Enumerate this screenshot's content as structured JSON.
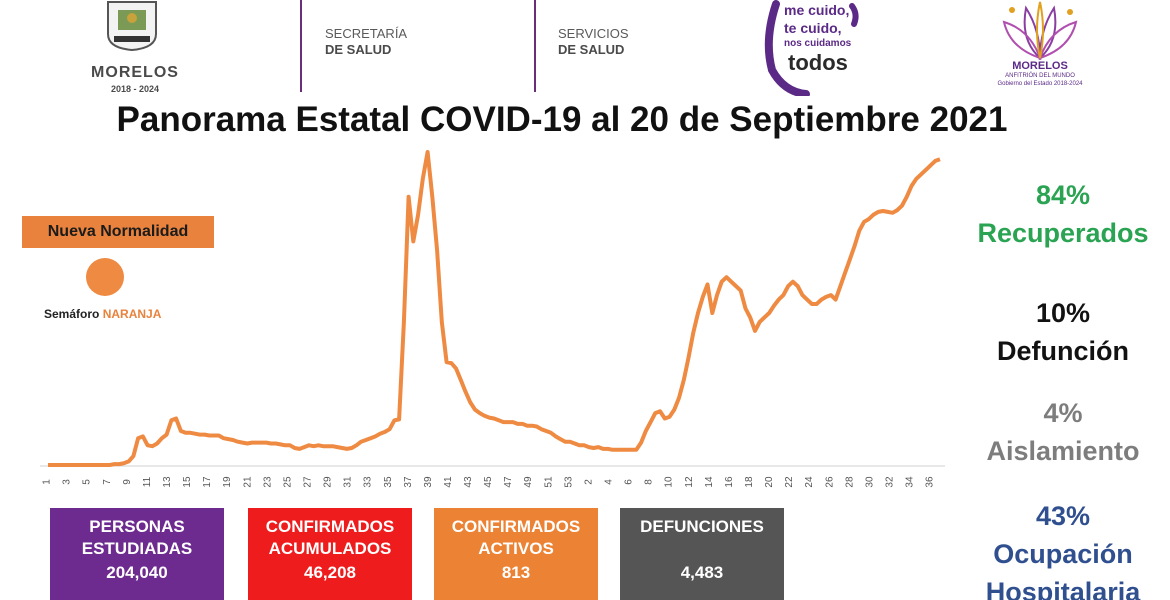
{
  "header": {
    "state_logo": {
      "name": "MORELOS",
      "years": "2018 - 2024"
    },
    "secretaria": {
      "line1": "SECRETARÍA",
      "line2": "DE SALUD"
    },
    "servicios": {
      "line1": "SERVICIOS",
      "line2": "DE SALUD"
    },
    "campaign": {
      "line1": "me cuido,",
      "line2": "te cuido,",
      "line3": "nos cuidamos",
      "line4": "todos"
    },
    "gov_logo": {
      "name": "MORELOS",
      "tagline": "ANFITRIÓN DEL MUNDO",
      "subline": "Gobierno del Estado 2018-2024"
    }
  },
  "title": "Panorama Estatal COVID-19 al 20 de Septiembre 2021",
  "legend": {
    "badge": "Nueva Normalidad",
    "semaforo_label": "Semáforo",
    "semaforo_level": "NARANJA",
    "semaforo_color": "#ee8a42"
  },
  "stats": {
    "recuperados": {
      "pct": "84%",
      "label": "Recuperados",
      "color": "#2aa352"
    },
    "defuncion": {
      "pct": "10%",
      "label": "Defunción",
      "color": "#121212"
    },
    "aislamiento": {
      "pct": "4%",
      "label": "Aislamiento",
      "color": "#7d7d7d"
    },
    "hospitalaria": {
      "pct": "43%",
      "label": "Ocupación Hospitalaria",
      "color": "#2f4f8f"
    }
  },
  "boxes": [
    {
      "label1": "PERSONAS",
      "label2": "ESTUDIADAS",
      "value": "204,040",
      "color": "#6e2b8f"
    },
    {
      "label1": "CONFIRMADOS",
      "label2": "ACUMULADOS",
      "value": "46,208",
      "color": "#ee1c1c"
    },
    {
      "label1": "CONFIRMADOS",
      "label2": "ACTIVOS",
      "value": "813",
      "color": "#ec8233"
    },
    {
      "label1": "DEFUNCIONES",
      "label2": "",
      "value": "4,483",
      "color": "#555555"
    }
  ],
  "chart_data": {
    "type": "line",
    "line_color": "#ee8a42",
    "x_labels": [
      "1",
      "3",
      "5",
      "7",
      "9",
      "11",
      "13",
      "15",
      "17",
      "19",
      "21",
      "23",
      "25",
      "27",
      "29",
      "31",
      "33",
      "35",
      "37",
      "39",
      "41",
      "43",
      "45",
      "47",
      "49",
      "51",
      "53",
      "2",
      "4",
      "6",
      "8",
      "10",
      "12",
      "14",
      "16",
      "18",
      "20",
      "22",
      "24",
      "26",
      "28",
      "30",
      "32",
      "34",
      "36"
    ],
    "values": [
      0,
      0,
      0,
      0,
      0,
      0,
      0,
      0,
      0,
      0,
      0,
      0,
      0,
      0,
      1,
      1,
      2,
      4,
      10,
      30,
      32,
      22,
      21,
      24,
      30,
      34,
      50,
      52,
      38,
      36,
      36,
      35,
      34,
      34,
      33,
      33,
      33,
      30,
      29,
      28,
      26,
      25,
      24,
      25,
      25,
      25,
      25,
      24,
      24,
      23,
      22,
      22,
      19,
      18,
      20,
      22,
      21,
      22,
      21,
      21,
      21,
      20,
      19,
      18,
      19,
      22,
      26,
      28,
      30,
      32,
      35,
      37,
      40,
      50,
      51,
      160,
      300,
      250,
      280,
      320,
      350,
      300,
      240,
      160,
      115,
      114,
      108,
      95,
      82,
      70,
      62,
      58,
      55,
      53,
      52,
      50,
      48,
      48,
      48,
      46,
      46,
      44,
      44,
      43,
      40,
      38,
      36,
      32,
      29,
      26,
      26,
      24,
      22,
      22,
      20,
      19,
      20,
      18,
      18,
      17,
      17,
      17,
      17,
      17,
      17,
      25,
      38,
      48,
      58,
      60,
      52,
      54,
      62,
      75,
      95,
      120,
      148,
      170,
      188,
      202,
      170,
      190,
      205,
      210,
      205,
      200,
      195,
      175,
      165,
      150,
      160,
      165,
      170,
      178,
      185,
      190,
      200,
      205,
      200,
      190,
      185,
      180,
      180,
      185,
      188,
      190,
      185,
      200,
      215,
      230,
      245,
      262,
      272,
      275,
      280,
      283,
      284,
      283,
      282,
      285,
      290,
      300,
      312,
      320,
      325,
      330,
      335,
      340,
      342
    ]
  }
}
